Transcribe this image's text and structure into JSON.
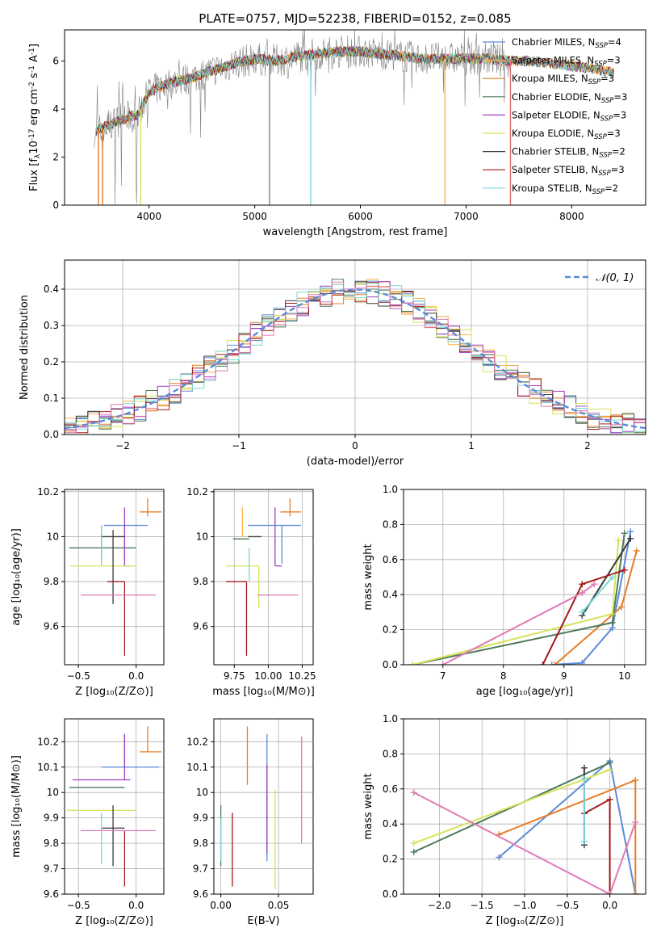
{
  "figure_title": "PLATE=0757, MJD=52238, FIBERID=0152, z=0.085",
  "colors": {
    "Chabrier MILES": "#5b8bd9",
    "Salpeter MILES": "#f7b44a",
    "Kroupa MILES": "#e87d27",
    "Chabrier ELODIE": "#4d7a5a",
    "Salpeter ELODIE": "#9b3fc0",
    "Kroupa ELODIE": "#d6e35a",
    "Chabrier STELIB": "#3a3a3a",
    "Salpeter STELIB": "#a31a1a",
    "Kroupa STELIB": "#7ad6d6",
    "gauss": "#5b8bd9",
    "pink": "#e07ab5"
  },
  "chart_data": [
    {
      "id": "spectrum",
      "type": "line",
      "xlabel": "wavelength [Angstrom, rest frame]",
      "ylabel_main": "Flux [f",
      "ylabel_tail": "10",
      "ylabel_exp1": "-17",
      "ylabel_mid": " erg cm",
      "ylabel_exp2": "-2",
      "ylabel_s": " s",
      "ylabel_exp3": "-1",
      "ylabel_a": " A",
      "ylabel_exp4": "-1",
      "ylabel_end": "]",
      "xlim": [
        3200,
        8700
      ],
      "ylim": [
        0,
        7.3
      ],
      "xticks": [
        4000,
        5000,
        6000,
        7000,
        8000
      ],
      "yticks": [
        0,
        2,
        4,
        6
      ],
      "legend_loc": "right",
      "series": [
        {
          "name": "Chabrier MILES",
          "nssp": "4"
        },
        {
          "name": "Salpeter MILES",
          "nssp": "3"
        },
        {
          "name": "Kroupa MILES",
          "nssp": "3"
        },
        {
          "name": "Chabrier ELODIE",
          "nssp": "3"
        },
        {
          "name": "Salpeter ELODIE",
          "nssp": "3"
        },
        {
          "name": "Kroupa ELODIE",
          "nssp": "3"
        },
        {
          "name": "Chabrier STELIB",
          "nssp": "2"
        },
        {
          "name": "Salpeter STELIB",
          "nssp": "3"
        },
        {
          "name": "Kroupa STELIB",
          "nssp": "2"
        }
      ],
      "continuum": [
        [
          3500,
          3.1
        ],
        [
          3700,
          3.5
        ],
        [
          3900,
          3.8
        ],
        [
          4000,
          4.7
        ],
        [
          4200,
          5.1
        ],
        [
          4400,
          5.3
        ],
        [
          4600,
          5.6
        ],
        [
          4800,
          5.9
        ],
        [
          5000,
          6.1
        ],
        [
          5200,
          6.0
        ],
        [
          5400,
          6.2
        ],
        [
          5600,
          6.3
        ],
        [
          5800,
          6.4
        ],
        [
          6000,
          6.4
        ],
        [
          6200,
          6.3
        ],
        [
          6400,
          6.2
        ],
        [
          6600,
          6.1
        ],
        [
          6800,
          6.1
        ],
        [
          7000,
          6.1
        ],
        [
          7200,
          6.1
        ],
        [
          7400,
          6.0
        ],
        [
          7600,
          6.0
        ],
        [
          7800,
          5.9
        ],
        [
          8000,
          5.8
        ],
        [
          8200,
          5.7
        ],
        [
          8400,
          5.5
        ]
      ],
      "deep_lines": [
        [
          3520,
          0
        ],
        [
          3560,
          0
        ],
        [
          3920,
          0
        ],
        [
          5140,
          0
        ],
        [
          5530,
          0
        ],
        [
          6800,
          0
        ],
        [
          7420,
          0
        ]
      ]
    },
    {
      "id": "residuals",
      "type": "step",
      "xlabel": "(data-model)/error",
      "ylabel": "Normed distribution",
      "xlim": [
        -2.5,
        2.5
      ],
      "ylim": [
        0,
        0.48
      ],
      "xticks": [
        -2,
        -1,
        0,
        1,
        2
      ],
      "xticklabels": [
        "−2",
        "−1",
        "0",
        "1",
        "2"
      ],
      "yticks": [
        0,
        0.1,
        0.2,
        0.3,
        0.4
      ],
      "yticklabels": [
        "0.0",
        "0.1",
        "0.2",
        "0.3",
        "0.4"
      ],
      "legend": "𝒩(0, 1)",
      "legend_loc": "top-right",
      "bin_width": 0.1
    },
    {
      "id": "age_vs_Z",
      "type": "errorbar",
      "xlabel": "Z [log₁₀(Z/Z⊙)]",
      "ylabel": "age  [log₁₀(age/yr)]",
      "xlim": [
        -0.62,
        0.24
      ],
      "ylim": [
        9.43,
        10.21
      ],
      "xticks": [
        -0.5,
        0.0
      ],
      "xticklabels": [
        "−0.5",
        "0.0"
      ],
      "yticks": [
        9.6,
        9.8,
        10.0,
        10.2
      ],
      "points": [
        {
          "s": "Chabrier MILES",
          "x": -0.1,
          "y": 10.05,
          "xe": [
            0.18,
            0.2
          ],
          "ye": [
            0.15,
            0.0
          ]
        },
        {
          "s": "Kroupa MILES",
          "x": 0.1,
          "y": 10.11,
          "xe": [
            0.07,
            0.12
          ],
          "ye": [
            0.02,
            0.06
          ]
        },
        {
          "s": "Chabrier ELODIE",
          "x": -0.3,
          "y": 9.95,
          "xe": [
            0.28,
            0.3
          ],
          "ye": [
            0.05,
            0.1
          ]
        },
        {
          "s": "Salpeter ELODIE",
          "x": -0.1,
          "y": 9.87,
          "xe": [
            0.0,
            0.04
          ],
          "ye": [
            0.0,
            0.26
          ]
        },
        {
          "s": "Kroupa ELODIE",
          "x": -0.3,
          "y": 9.87,
          "xe": [
            0.27,
            0.3
          ],
          "ye": [
            0.0,
            0.0
          ]
        },
        {
          "s": "Chabrier STELIB",
          "x": -0.2,
          "y": 10.0,
          "xe": [
            0.1,
            0.1
          ],
          "ye": [
            0.3,
            0.03
          ]
        },
        {
          "s": "Salpeter STELIB",
          "x": -0.1,
          "y": 9.8,
          "xe": [
            0.15,
            0.0
          ],
          "ye": [
            0.33,
            0.0
          ]
        },
        {
          "s": "Kroupa STELIB",
          "x": -0.3,
          "y": 9.95,
          "xe": [
            0.0,
            0.0
          ],
          "ye": [
            0.08,
            0.1
          ]
        },
        {
          "s": "pink",
          "x": -0.1,
          "y": 9.74,
          "xe": [
            0.38,
            0.27
          ],
          "ye": [
            0.0,
            0.0
          ]
        }
      ]
    },
    {
      "id": "age_vs_mass",
      "type": "errorbar",
      "xlabel": "mass [log₁₀(M/M⊙)]",
      "xlim": [
        9.6,
        10.33
      ],
      "ylim": [
        9.43,
        10.21
      ],
      "xticks": [
        9.75,
        10.0,
        10.25
      ],
      "xticklabels": [
        "9.75",
        "10.00",
        "10.25"
      ],
      "yticks": [
        9.6,
        9.8,
        10.0,
        10.2
      ],
      "points": [
        {
          "s": "Chabrier MILES",
          "x": 10.1,
          "y": 10.05,
          "xe": [
            0.25,
            0.14
          ],
          "ye": [
            0.17,
            0.0
          ]
        },
        {
          "s": "Kroupa MILES",
          "x": 10.16,
          "y": 10.11,
          "xe": [
            0.07,
            0.08
          ],
          "ye": [
            0.02,
            0.06
          ]
        },
        {
          "s": "Chabrier ELODIE",
          "x": 9.86,
          "y": 9.99,
          "xe": [
            0.12,
            0.0
          ],
          "ye": [
            0.0,
            0.0
          ]
        },
        {
          "s": "Salpeter ELODIE",
          "x": 10.05,
          "y": 9.87,
          "xe": [
            0.0,
            0.05
          ],
          "ye": [
            0.0,
            0.26
          ]
        },
        {
          "s": "Kroupa ELODIE",
          "x": 9.93,
          "y": 9.87,
          "xe": [
            0.24,
            0.0
          ],
          "ye": [
            0.19,
            0.0
          ]
        },
        {
          "s": "Chabrier STELIB",
          "x": 9.9,
          "y": 10.0,
          "xe": [
            0.05,
            0.05
          ],
          "ye": [
            0.0,
            0.0
          ]
        },
        {
          "s": "Salpeter STELIB",
          "x": 9.84,
          "y": 9.8,
          "xe": [
            0.15,
            0.0
          ],
          "ye": [
            0.33,
            0.0
          ]
        },
        {
          "s": "Kroupa STELIB",
          "x": 9.86,
          "y": 9.9,
          "xe": [
            0.0,
            0.0
          ],
          "ye": [
            0.1,
            0.05
          ]
        },
        {
          "s": "pink",
          "x": 10.07,
          "y": 9.74,
          "xe": [
            0.15,
            0.15
          ],
          "ye": [
            0.0,
            0.0
          ]
        },
        {
          "s": "Salpeter MILES",
          "x": 9.81,
          "y": 10.0,
          "xe": [
            0.0,
            0.0
          ],
          "ye": [
            0.0,
            0.13
          ]
        }
      ]
    },
    {
      "id": "mass_weight_vs_age",
      "type": "line",
      "xlabel": "age  [log₁₀(age/yr)]",
      "ylabel": "mass weight",
      "xlim": [
        6.35,
        10.35
      ],
      "ylim": [
        0,
        1.0
      ],
      "xticks": [
        7,
        8,
        9,
        10
      ],
      "yticks": [
        0,
        0.2,
        0.4,
        0.6,
        0.8,
        1.0
      ],
      "yticklabels": [
        "0.0",
        "0.2",
        "0.4",
        "0.6",
        "0.8",
        "1.0"
      ],
      "series": [
        {
          "s": "Chabrier MILES",
          "pts": [
            [
              8.8,
              0.0
            ],
            [
              9.3,
              0.01
            ],
            [
              9.8,
              0.21
            ],
            [
              10.1,
              0.76
            ]
          ]
        },
        {
          "s": "Kroupa MILES",
          "pts": [
            [
              8.85,
              0.0
            ],
            [
              9.95,
              0.33
            ],
            [
              10.2,
              0.65
            ]
          ]
        },
        {
          "s": "Chabrier ELODIE",
          "pts": [
            [
              6.5,
              0.0
            ],
            [
              9.8,
              0.24
            ],
            [
              10.0,
              0.75
            ]
          ]
        },
        {
          "s": "Kroupa ELODIE",
          "pts": [
            [
              6.5,
              0.0
            ],
            [
              9.8,
              0.29
            ],
            [
              9.9,
              0.71
            ]
          ]
        },
        {
          "s": "Chabrier STELIB",
          "pts": [
            [
              9.3,
              0.28
            ],
            [
              10.1,
              0.72
            ]
          ]
        },
        {
          "s": "Salpeter STELIB",
          "pts": [
            [
              8.65,
              0.0
            ],
            [
              9.3,
              0.46
            ],
            [
              10.0,
              0.54
            ]
          ]
        },
        {
          "s": "Kroupa STELIB",
          "pts": [
            [
              9.3,
              0.3
            ],
            [
              9.8,
              0.5
            ]
          ]
        },
        {
          "s": "pink",
          "pts": [
            [
              7.0,
              0.0
            ],
            [
              9.3,
              0.41
            ],
            [
              9.5,
              0.46
            ]
          ]
        }
      ]
    },
    {
      "id": "mass_vs_Z",
      "type": "errorbar",
      "xlabel": "Z [log₁₀(Z/Z⊙)]",
      "ylabel": "mass [log₁₀(M/M⊙)]",
      "xlim": [
        -0.62,
        0.24
      ],
      "ylim": [
        9.6,
        10.29
      ],
      "xticks": [
        -0.5,
        0.0
      ],
      "xticklabels": [
        "−0.5",
        "0.0"
      ],
      "yticks": [
        9.6,
        9.7,
        9.8,
        9.9,
        10.0,
        10.1,
        10.2
      ],
      "points": [
        {
          "s": "Chabrier MILES",
          "x": -0.1,
          "y": 10.1,
          "xe": [
            0.2,
            0.3
          ],
          "ye": [
            0.0,
            0.13
          ]
        },
        {
          "s": "Kroupa MILES",
          "x": 0.1,
          "y": 10.16,
          "xe": [
            0.07,
            0.12
          ],
          "ye": [
            0.0,
            0.1
          ]
        },
        {
          "s": "Chabrier ELODIE",
          "x": -0.3,
          "y": 10.02,
          "xe": [
            0.28,
            0.2
          ],
          "ye": [
            0.0,
            0.0
          ]
        },
        {
          "s": "Salpeter ELODIE",
          "x": -0.1,
          "y": 10.05,
          "xe": [
            0.45,
            0.05
          ],
          "ye": [
            0.0,
            0.18
          ]
        },
        {
          "s": "Kroupa ELODIE",
          "x": -0.3,
          "y": 9.93,
          "xe": [
            0.3,
            0.3
          ],
          "ye": [
            0.0,
            0.0
          ]
        },
        {
          "s": "Chabrier STELIB",
          "x": -0.2,
          "y": 9.86,
          "xe": [
            0.1,
            0.1
          ],
          "ye": [
            0.15,
            0.09
          ]
        },
        {
          "s": "Salpeter STELIB",
          "x": -0.1,
          "y": 9.85,
          "xe": [
            0.0,
            0.0
          ],
          "ye": [
            0.22,
            0.0
          ]
        },
        {
          "s": "Kroupa STELIB",
          "x": -0.3,
          "y": 9.85,
          "xe": [
            0.0,
            0.0
          ],
          "ye": [
            0.13,
            0.07
          ]
        },
        {
          "s": "pink",
          "x": -0.1,
          "y": 9.85,
          "xe": [
            0.38,
            0.27
          ],
          "ye": [
            0.0,
            0.0
          ]
        }
      ]
    },
    {
      "id": "mass_vs_ebv",
      "type": "errorbar",
      "xlabel": "E(B-V)",
      "xlim": [
        -0.006,
        0.08
      ],
      "ylim": [
        9.6,
        10.29
      ],
      "xticks": [
        0.0,
        0.05
      ],
      "xticklabels": [
        "0.00",
        "0.05"
      ],
      "yticks": [
        9.6,
        9.7,
        9.8,
        9.9,
        10.0,
        10.1,
        10.2
      ],
      "vsegs": [
        {
          "s": "Chabrier MILES",
          "x": 0.04,
          "y0": 9.73,
          "y1": 10.23
        },
        {
          "s": "Kroupa MILES",
          "x": 0.023,
          "y0": 10.03,
          "y1": 10.26
        },
        {
          "s": "Chabrier ELODIE",
          "x": 0.0,
          "y0": 9.71,
          "y1": 9.95
        },
        {
          "s": "Salpeter ELODIE",
          "x": 0.04,
          "y0": 9.76,
          "y1": 10.11
        },
        {
          "s": "Kroupa ELODIE",
          "x": 0.047,
          "y0": 9.62,
          "y1": 10.01
        },
        {
          "s": "Salpeter STELIB",
          "x": 0.01,
          "y0": 9.63,
          "y1": 9.92
        },
        {
          "s": "Kroupa STELIB",
          "x": 0.0,
          "y0": 9.73,
          "y1": 9.9
        },
        {
          "s": "pink",
          "x": 0.07,
          "y0": 9.8,
          "y1": 10.22
        }
      ]
    },
    {
      "id": "mass_weight_vs_Z",
      "type": "line",
      "xlabel": "Z [log₁₀(Z/Z⊙)]",
      "ylabel": "mass weight",
      "xlim": [
        -2.42,
        0.42
      ],
      "ylim": [
        0,
        1.0
      ],
      "xticks": [
        -2.0,
        -1.5,
        -1.0,
        -0.5,
        0.0
      ],
      "xticklabels": [
        "−2.0",
        "−1.5",
        "−1.0",
        "−0.5",
        "0.0"
      ],
      "yticks": [
        0,
        0.2,
        0.4,
        0.6,
        0.8,
        1.0
      ],
      "yticklabels": [
        "0.0",
        "0.2",
        "0.4",
        "0.6",
        "0.8",
        "1.0"
      ],
      "series": [
        {
          "s": "Chabrier MILES",
          "pts": [
            [
              -1.3,
              0.21
            ],
            [
              0.0,
              0.76
            ],
            [
              0.3,
              0.0
            ]
          ]
        },
        {
          "s": "Kroupa MILES",
          "pts": [
            [
              -1.3,
              0.34
            ],
            [
              0.3,
              0.65
            ],
            [
              0.3,
              0.0
            ]
          ]
        },
        {
          "s": "Chabrier ELODIE",
          "pts": [
            [
              -2.3,
              0.24
            ],
            [
              0.0,
              0.75
            ]
          ]
        },
        {
          "s": "Kroupa ELODIE",
          "pts": [
            [
              -2.3,
              0.29
            ],
            [
              0.0,
              0.71
            ]
          ]
        },
        {
          "s": "Chabrier STELIB",
          "pts": [
            [
              -0.3,
              0.28
            ],
            [
              -0.3,
              0.72
            ]
          ]
        },
        {
          "s": "Salpeter STELIB",
          "pts": [
            [
              -0.3,
              0.46
            ],
            [
              0.0,
              0.54
            ],
            [
              0.0,
              0.0
            ]
          ]
        },
        {
          "s": "Kroupa STELIB",
          "pts": [
            [
              -0.3,
              0.3
            ],
            [
              -0.3,
              0.66
            ]
          ]
        },
        {
          "s": "pink",
          "pts": [
            [
              -2.3,
              0.58
            ],
            [
              0.0,
              0.0
            ],
            [
              0.3,
              0.41
            ]
          ]
        }
      ]
    }
  ]
}
